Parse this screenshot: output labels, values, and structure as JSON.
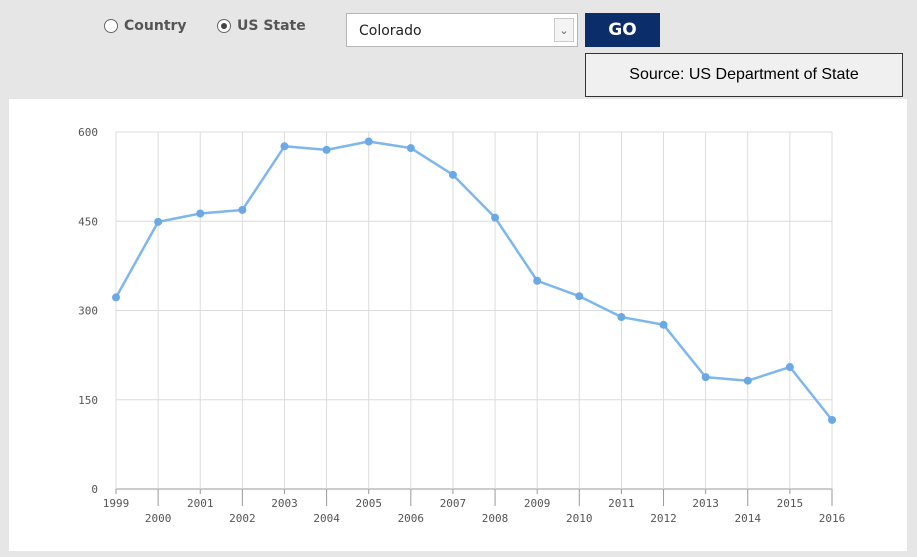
{
  "controls": {
    "radio_country": "Country",
    "radio_state": "US State",
    "selected_radio": "US State",
    "select_value": "Colorado",
    "select_arrow": "⌄",
    "go_label": "GO",
    "source_text": "Source: US Department of State"
  },
  "colors": {
    "line": "#7db7ee",
    "point": "#6aa8e6",
    "go_button": "#0b2e6b",
    "grid": "#dcdcdc"
  },
  "chart_data": {
    "type": "line",
    "title": "",
    "xlabel": "",
    "ylabel": "",
    "x": [
      "1999",
      "2000",
      "2001",
      "2002",
      "2003",
      "2004",
      "2005",
      "2006",
      "2007",
      "2008",
      "2009",
      "2010",
      "2011",
      "2012",
      "2013",
      "2014",
      "2015",
      "2016"
    ],
    "series": [
      {
        "values": [
          322,
          449,
          463,
          469,
          576,
          570,
          584,
          573,
          528,
          456,
          350,
          324,
          289,
          276,
          188,
          182,
          205,
          116
        ]
      }
    ],
    "ylim": [
      0,
      600
    ],
    "yticks": [
      0,
      150,
      300,
      450,
      600
    ],
    "grid": true,
    "legend": "none"
  }
}
